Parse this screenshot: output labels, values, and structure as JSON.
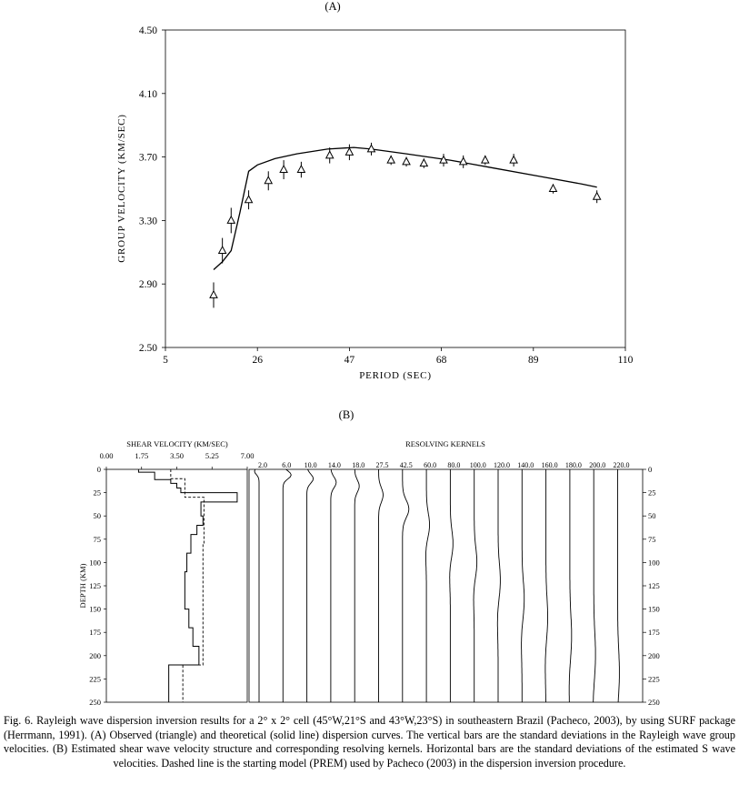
{
  "chart_data": [
    {
      "type": "scatter",
      "panel_label": "(A)",
      "xlabel": "PERIOD (SEC)",
      "ylabel": "GROUP VELOCITY (KM/SEC)",
      "xlim": [
        5,
        110
      ],
      "ylim": [
        2.5,
        4.5
      ],
      "xticks": [
        "5",
        "26",
        "47",
        "68",
        "89",
        "110"
      ],
      "yticks": [
        "2.50",
        "2.90",
        "3.30",
        "3.70",
        "4.10",
        "4.50"
      ],
      "grid": false,
      "series": [
        {
          "marker": "triangle",
          "x": [
            16,
            18,
            20,
            24,
            28.5,
            32,
            36,
            42.5,
            47,
            52,
            56.5,
            60,
            64,
            68.5,
            73,
            78,
            84.5,
            93.5,
            103.5
          ],
          "y": [
            2.83,
            3.11,
            3.3,
            3.43,
            3.55,
            3.62,
            3.62,
            3.71,
            3.73,
            3.75,
            3.68,
            3.67,
            3.66,
            3.68,
            3.67,
            3.68,
            3.68,
            3.5,
            3.45
          ],
          "error": [
            0.08,
            0.08,
            0.08,
            0.06,
            0.06,
            0.06,
            0.05,
            0.05,
            0.05,
            0.04,
            0.03,
            0.03,
            0.03,
            0.04,
            0.04,
            0.03,
            0.04,
            0.03,
            0.04
          ]
        },
        {
          "style": "solid-line",
          "x": [
            16,
            18,
            20,
            22,
            24,
            26,
            30,
            35,
            42,
            48,
            52,
            60,
            70,
            80,
            90,
            100,
            103.5
          ],
          "y": [
            2.99,
            3.04,
            3.11,
            3.35,
            3.61,
            3.65,
            3.69,
            3.72,
            3.75,
            3.76,
            3.75,
            3.72,
            3.68,
            3.63,
            3.58,
            3.53,
            3.51
          ]
        }
      ]
    },
    {
      "type": "line",
      "panel_label": "(B)",
      "title": "SHEAR VELOCITY (KM/SEC)",
      "ylabel": "DEPTH (KM)",
      "xlim": [
        0,
        7
      ],
      "ylim": [
        250,
        0
      ],
      "xticks": [
        "0.00",
        "1.75",
        "3.50",
        "5.25",
        "7.00"
      ],
      "yticks": [
        "0",
        "25",
        "50",
        "75",
        "100",
        "125",
        "150",
        "175",
        "200",
        "225",
        "250"
      ],
      "series": [
        {
          "style": "solid-step",
          "depth": [
            0,
            3,
            3,
            11,
            11,
            15,
            15,
            20,
            20,
            25,
            25,
            35,
            35,
            50,
            50,
            60,
            60,
            70,
            70,
            90,
            90,
            110,
            110,
            150,
            150,
            170,
            170,
            190,
            190,
            210,
            210,
            250
          ],
          "velocity": [
            1.6,
            1.6,
            2.4,
            2.4,
            3.2,
            3.2,
            3.5,
            3.5,
            3.7,
            3.7,
            6.5,
            6.5,
            4.7,
            4.7,
            4.8,
            4.8,
            4.5,
            4.5,
            4.2,
            4.2,
            4.0,
            4.0,
            3.9,
            3.9,
            4.1,
            4.1,
            4.3,
            4.3,
            4.6,
            4.6,
            3.1,
            3.1
          ]
        },
        {
          "style": "dashed-step",
          "depth": [
            0,
            10,
            10,
            30,
            30,
            80,
            80,
            210,
            210,
            250
          ],
          "velocity": [
            3.2,
            3.2,
            3.9,
            3.9,
            4.85,
            4.85,
            4.8,
            4.8,
            3.8,
            3.8
          ]
        }
      ]
    },
    {
      "type": "line",
      "title": "RESOLVING KERNELS",
      "kernel_labels": [
        "2.0",
        "6.0",
        "10.0",
        "14.0",
        "18.0",
        "27.5",
        "42.5",
        "60.0",
        "80.0",
        "100.0",
        "120.0",
        "140.0",
        "160.0",
        "180.0",
        "200.0",
        "220.0"
      ],
      "depth_ticks": [
        "0",
        "25",
        "50",
        "75",
        "100",
        "125",
        "150",
        "175",
        "200",
        "225",
        "250"
      ]
    }
  ],
  "caption": "Fig. 6. Rayleigh wave dispersion inversion results for a 2° x 2° cell (45°W,21°S and 43°W,23°S) in southeastern Brazil (Pacheco, 2003), by using SURF package (Herrmann, 1991). (A) Observed (triangle) and theoretical (solid line) dispersion curves. The vertical bars are the standard deviations in the Rayleigh wave group velocities. (B) Estimated shear wave velocity structure and corresponding resolving kernels. Horizontal bars are the standard deviations of the estimated S wave velocities. Dashed line is the starting model (PREM) used by Pacheco (2003) in the dispersion inversion procedure."
}
